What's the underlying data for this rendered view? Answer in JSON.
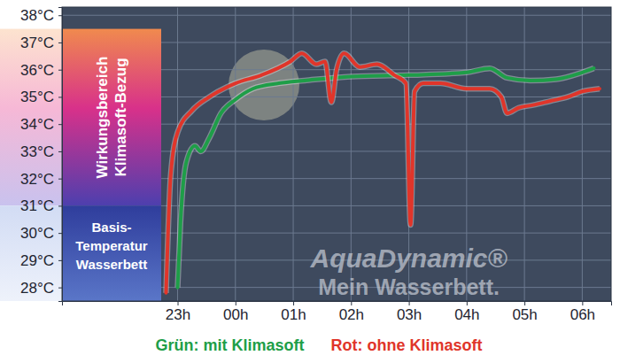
{
  "chart_data": {
    "type": "line",
    "series": [
      {
        "name": "Grün: mit Klimasoft",
        "color": "#1e9e48",
        "x": [
          23.0,
          23.05,
          23.15,
          23.3,
          23.4,
          23.55,
          23.75,
          24.0,
          24.3,
          24.75,
          25.2,
          26.0,
          27.0,
          28.0,
          28.4,
          28.7,
          29.1,
          29.55,
          30.0,
          30.2
        ],
        "values": [
          28.0,
          30.4,
          32.6,
          33.2,
          33.0,
          33.5,
          34.4,
          34.9,
          35.3,
          35.5,
          35.6,
          35.75,
          35.8,
          35.9,
          36.05,
          35.7,
          35.6,
          35.65,
          35.9,
          36.05
        ]
      },
      {
        "name": "Rot: ohne Klimasoft",
        "color": "#e0352a",
        "x": [
          22.8,
          22.88,
          23.0,
          23.25,
          23.55,
          24.0,
          24.45,
          24.95,
          25.15,
          25.4,
          25.55,
          25.66,
          25.75,
          25.88,
          26.15,
          26.45,
          26.75,
          26.95,
          27.03,
          27.1,
          27.25,
          27.55,
          28.0,
          28.4,
          28.6,
          28.7,
          28.9,
          29.15,
          29.45,
          29.75,
          30.0,
          30.3
        ],
        "values": [
          27.8,
          32.1,
          33.7,
          34.5,
          35.0,
          35.5,
          35.8,
          36.3,
          36.6,
          36.2,
          36.3,
          34.8,
          36.0,
          36.6,
          36.1,
          36.2,
          35.8,
          35.5,
          30.3,
          35.2,
          35.5,
          35.5,
          35.3,
          35.3,
          35.0,
          34.4,
          34.6,
          34.7,
          34.85,
          35.0,
          35.2,
          35.3
        ]
      }
    ],
    "xlim": [
      21,
      30.5
    ],
    "ylim": [
      27.5,
      38.3
    ],
    "xticks": [
      {
        "value": 23,
        "label": "23h"
      },
      {
        "value": 24,
        "label": "00h"
      },
      {
        "value": 25,
        "label": "01h"
      },
      {
        "value": 26,
        "label": "02h"
      },
      {
        "value": 27,
        "label": "03h"
      },
      {
        "value": 28,
        "label": "04h"
      },
      {
        "value": 29,
        "label": "05h"
      },
      {
        "value": 30,
        "label": "06h"
      }
    ],
    "yticks": [
      {
        "value": 28,
        "label": "28°C"
      },
      {
        "value": 29,
        "label": "29°C"
      },
      {
        "value": 30,
        "label": "30°C"
      },
      {
        "value": 31,
        "label": "31°C"
      },
      {
        "value": 32,
        "label": "32°C"
      },
      {
        "value": 33,
        "label": "33°C"
      },
      {
        "value": 34,
        "label": "34°C"
      },
      {
        "value": 35,
        "label": "35°C"
      },
      {
        "value": 36,
        "label": "36°C"
      },
      {
        "value": 37,
        "label": "37°C"
      },
      {
        "value": 38,
        "label": "38°C"
      }
    ],
    "grid": true,
    "legend": "bottom",
    "bands": [
      {
        "label": [
          "Wirkungsbereich",
          "Klimasoft-Bezug"
        ],
        "range": [
          31,
          37.5
        ]
      },
      {
        "label": [
          "Basis-",
          "Temperatur",
          "Wasserbett"
        ],
        "range": [
          27.5,
          31
        ]
      }
    ],
    "watermark": [
      "AquaDynamic®",
      "Mein Wasserbett."
    ]
  }
}
